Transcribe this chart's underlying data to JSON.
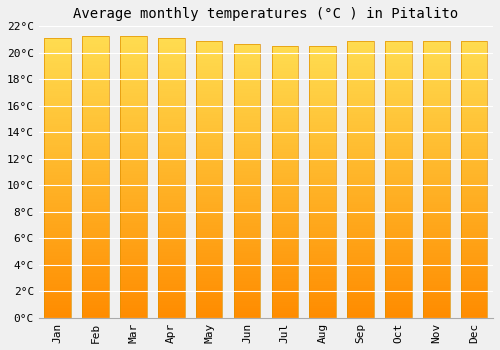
{
  "title": "Average monthly temperatures (°C ) in Pitalito",
  "months": [
    "Jan",
    "Feb",
    "Mar",
    "Apr",
    "May",
    "Jun",
    "Jul",
    "Aug",
    "Sep",
    "Oct",
    "Nov",
    "Dec"
  ],
  "temperatures": [
    21.1,
    21.3,
    21.3,
    21.1,
    20.9,
    20.7,
    20.5,
    20.5,
    20.9,
    20.9,
    20.9,
    20.9
  ],
  "bar_color": "#FFC107",
  "bar_gradient_top": "#FFD700",
  "bar_gradient_bottom": "#FF8C00",
  "bar_edge_color": "#E09000",
  "ylim": [
    0,
    22
  ],
  "yticks": [
    0,
    2,
    4,
    6,
    8,
    10,
    12,
    14,
    16,
    18,
    20,
    22
  ],
  "background_color": "#f0f0f0",
  "plot_bg_color": "#f0f0f0",
  "grid_color": "#ffffff",
  "title_fontsize": 10,
  "tick_fontsize": 8,
  "bar_width": 0.7
}
